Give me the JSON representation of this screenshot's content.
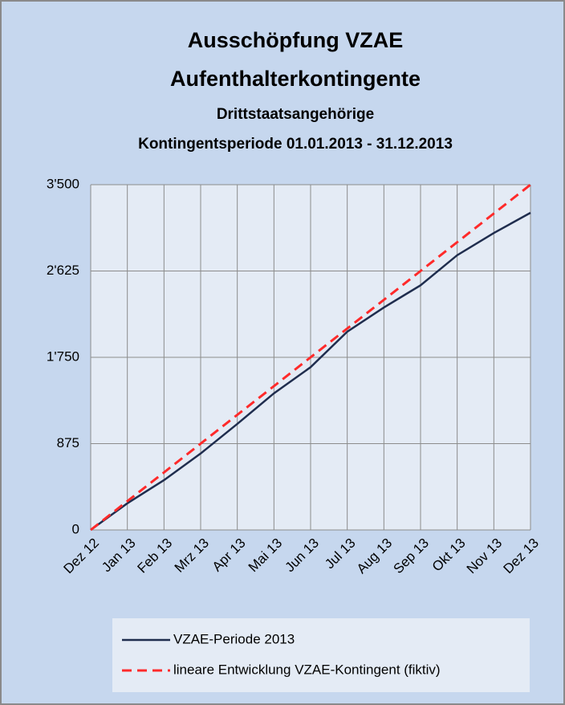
{
  "chart_data": {
    "type": "line",
    "title": [
      "Ausschöpfung VZAE",
      "Aufenthalterkontingente"
    ],
    "subtitle": [
      "Drittstaatsangehörige",
      "Kontingentsperiode 01.01.2013 - 31.12.2013"
    ],
    "categories": [
      "Dez 12",
      "Jan 13",
      "Feb 13",
      "Mrz 13",
      "Apr 13",
      "Mai 13",
      "Jun 13",
      "Jul 13",
      "Aug 13",
      "Sep 13",
      "Okt 13",
      "Nov 13",
      "Dez 13"
    ],
    "series": [
      {
        "name": "VZAE-Periode 2013",
        "color": "#1f2d4e",
        "dash": false,
        "values": [
          0,
          270,
          505,
          775,
          1075,
          1385,
          1650,
          2010,
          2255,
          2480,
          2785,
          3010,
          3215
        ]
      },
      {
        "name": "lineare Entwicklung VZAE-Kontingent (fiktiv)",
        "color": "#ff2a2a",
        "dash": true,
        "values": [
          0,
          292,
          583,
          875,
          1167,
          1458,
          1750,
          2042,
          2333,
          2625,
          2917,
          3208,
          3500
        ]
      }
    ],
    "ylim": [
      0,
      3500
    ],
    "yticks": [
      0,
      875,
      {
        "value": 1750,
        "label": "1'750"
      },
      {
        "value": 2625,
        "label": "2'625"
      },
      {
        "value": 3500,
        "label": "3'500"
      }
    ],
    "grid": true
  }
}
